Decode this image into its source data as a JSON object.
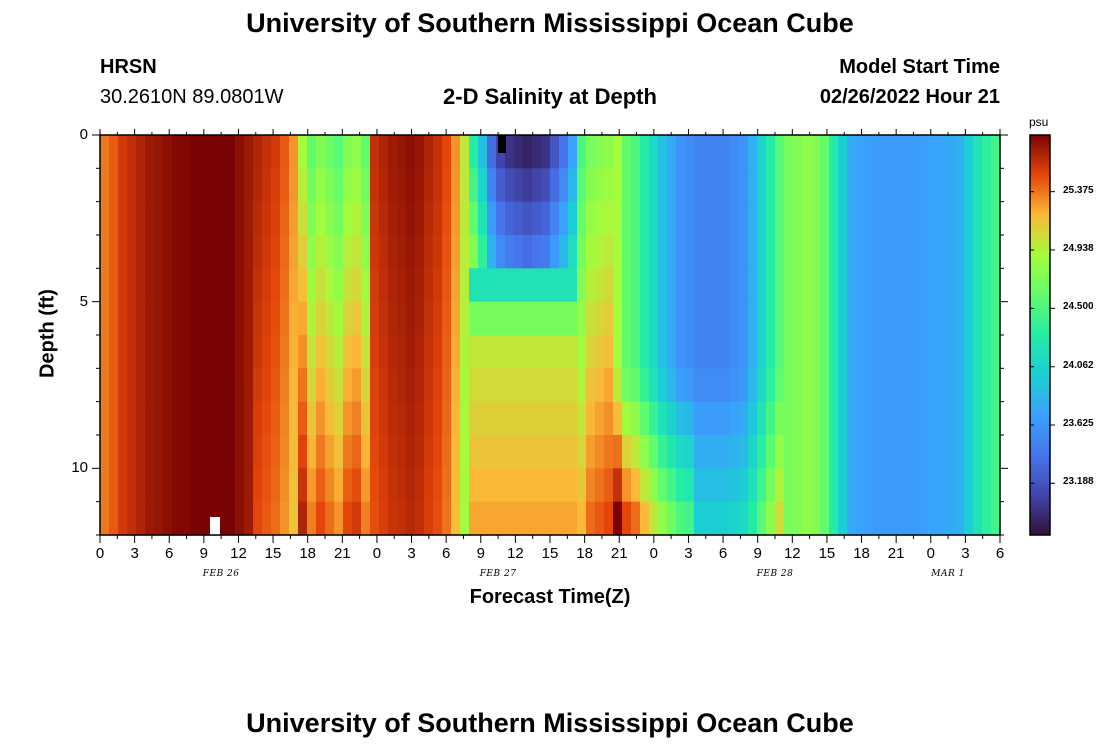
{
  "header": {
    "title": "University of Southern Mississippi Ocean Cube",
    "station": "HRSN",
    "coords": "30.2610N  89.0801W",
    "plot_title": "2-D Salinity at Depth",
    "start_label": "Model Start Time",
    "start_value": "02/26/2022 Hour 21"
  },
  "footer": {
    "title": "University of Southern Mississippi Ocean Cube"
  },
  "chart_data": {
    "type": "heatmap",
    "title": "2-D Salinity at Depth",
    "xlabel": "Forecast Time(Z)",
    "ylabel": "Depth (ft)",
    "x_tick_labels": [
      "0",
      "3",
      "6",
      "9",
      "12",
      "15",
      "18",
      "21",
      "0",
      "3",
      "6",
      "9",
      "12",
      "15",
      "18",
      "21",
      "0",
      "3",
      "6",
      "9",
      "12",
      "15",
      "18",
      "21",
      "0",
      "3",
      "6"
    ],
    "date_labels": [
      {
        "text": "FEB 26",
        "tick_index": 3.5
      },
      {
        "text": "FEB 27",
        "tick_index": 11.5
      },
      {
        "text": "FEB 28",
        "tick_index": 19.5
      },
      {
        "text": "MAR 1",
        "tick_index": 24.5
      }
    ],
    "y_tick_labels": [
      "0",
      "5",
      "10"
    ],
    "ylim": [
      0,
      12
    ],
    "colorbar": {
      "unit": "psu",
      "vmin": 22.8,
      "vmax": 25.8,
      "tick_labels": [
        "25.375",
        "24.938",
        "24.500",
        "24.062",
        "23.625",
        "23.188"
      ]
    },
    "surface_salinity": [
      25.37,
      25.45,
      25.55,
      25.6,
      25.65,
      25.7,
      25.72,
      25.75,
      25.78,
      25.78,
      25.85,
      25.85,
      25.85,
      25.82,
      25.8,
      25.75,
      25.7,
      25.65,
      25.6,
      25.55,
      25.45,
      25.3,
      24.9,
      24.6,
      24.75,
      24.65,
      24.55,
      24.75,
      24.8,
      24.6,
      25.6,
      25.65,
      25.7,
      25.72,
      25.75,
      25.72,
      25.65,
      25.6,
      25.5,
      25.3,
      25.0,
      24.3,
      23.9,
      23.35,
      23.1,
      23.0,
      22.95,
      22.9,
      22.95,
      23.0,
      23.2,
      23.4,
      23.7,
      24.5,
      24.7,
      24.75,
      24.8,
      24.9,
      24.6,
      24.5,
      24.3,
      24.1,
      23.9,
      23.75,
      23.6,
      23.55,
      23.5,
      23.5,
      23.5,
      23.5,
      23.55,
      23.6,
      23.8,
      24.05,
      24.3,
      24.55,
      24.7,
      24.75,
      24.8,
      24.75,
      24.6,
      24.3,
      24.0,
      23.75,
      23.7,
      23.68,
      23.66,
      23.66,
      23.66,
      23.66,
      23.66,
      23.68,
      23.7,
      23.72,
      23.75,
      23.8,
      24.0,
      24.2,
      24.35,
      24.45
    ],
    "annotations": [
      {
        "text": "black marker near surface",
        "time_index": 44
      },
      {
        "text": "white marker near bottom",
        "time_index": 12
      }
    ]
  }
}
